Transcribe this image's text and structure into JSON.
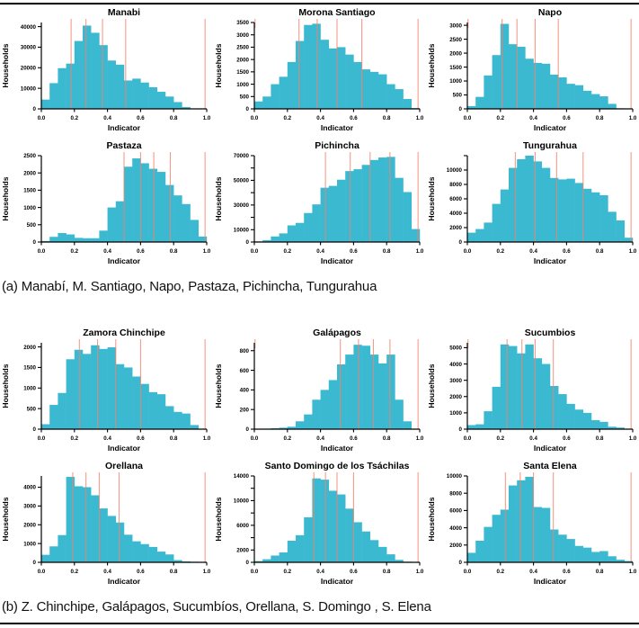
{
  "figure": {
    "bar_color": "#3bb9d1",
    "red_line_color": "#f2836f",
    "axis_color": "#000000",
    "rule_color": "#000000"
  },
  "captions": {
    "a": "(a) Manabí, M. Santiago, Napo, Pastaza, Pichincha, Tungurahua",
    "b": "(b) Z. Chinchipe, Galápagos, Sucumbíos, Orellana, S. Domingo , S. Elena"
  },
  "chart_data": [
    {
      "type": "histogram",
      "panel": "a",
      "slug": "manabi",
      "title": "Manabi",
      "xlabel": "Indicator",
      "ylabel": "Households",
      "bin_start": 0,
      "bin_width": 0.05,
      "xlim": [
        0,
        1
      ],
      "xticks": [
        0,
        0.2,
        0.4,
        0.6,
        0.8,
        1
      ],
      "values": [
        4500,
        12500,
        19800,
        22000,
        33000,
        40500,
        37000,
        31000,
        23500,
        21500,
        13800,
        14700,
        12800,
        10500,
        8300,
        6000,
        3300,
        900,
        0,
        0
      ],
      "ylim": [
        0,
        42000
      ],
      "yticks": [
        0,
        10000,
        20000,
        30000,
        40000
      ],
      "red_lines": [
        0.18,
        0.27,
        0.37,
        0.51,
        0.99
      ],
      "zero_top_tick": false
    },
    {
      "type": "histogram",
      "panel": "a",
      "slug": "morona-santiago",
      "title": "Morona Santiago",
      "xlabel": "Indicator",
      "ylabel": "Households",
      "bin_start": 0,
      "bin_width": 0.05,
      "xlim": [
        0,
        1
      ],
      "xticks": [
        0,
        0.2,
        0.4,
        0.6,
        0.8,
        1
      ],
      "values": [
        300,
        500,
        1000,
        1300,
        1900,
        2750,
        3400,
        3450,
        2800,
        2450,
        2500,
        2200,
        1900,
        1600,
        1500,
        1400,
        1000,
        800,
        400,
        30
      ],
      "ylim": [
        0,
        3500
      ],
      "yticks": [
        0,
        500,
        1000,
        1500,
        2000,
        2500,
        3000,
        3500
      ],
      "red_lines": [
        0.27,
        0.38,
        0.5,
        0.65,
        0.99
      ],
      "zero_top_tick": true
    },
    {
      "type": "histogram",
      "panel": "a",
      "slug": "napo",
      "title": "Napo",
      "xlabel": "Indicator",
      "ylabel": "Households",
      "bin_start": 0,
      "bin_width": 0.05,
      "xlim": [
        0,
        1
      ],
      "xticks": [
        0,
        0.2,
        0.4,
        0.6,
        0.8,
        1
      ],
      "values": [
        100,
        430,
        1200,
        1930,
        3050,
        2320,
        2230,
        1800,
        1650,
        1620,
        1230,
        1130,
        900,
        850,
        650,
        530,
        450,
        180,
        20,
        0
      ],
      "ylim": [
        0,
        3100
      ],
      "yticks": [
        0,
        500,
        1000,
        1500,
        2000,
        2500,
        3000
      ],
      "red_lines": [
        0.21,
        0.3,
        0.41,
        0.55,
        0.99
      ],
      "zero_top_tick": true
    },
    {
      "type": "histogram",
      "panel": "a",
      "slug": "pastaza",
      "title": "Pastaza",
      "xlabel": "Indicator",
      "ylabel": "Households",
      "bin_start": 0,
      "bin_width": 0.05,
      "xlim": [
        0,
        1
      ],
      "xticks": [
        0,
        0.2,
        0.4,
        0.6,
        0.8,
        1
      ],
      "values": [
        30,
        150,
        260,
        220,
        120,
        110,
        110,
        330,
        1000,
        1180,
        2180,
        2420,
        2280,
        2120,
        2030,
        1650,
        1350,
        1100,
        640,
        160
      ],
      "ylim": [
        0,
        2500
      ],
      "yticks": [
        0,
        500,
        1000,
        1500,
        2000,
        2500
      ],
      "red_lines": [
        0.5,
        0.6,
        0.68,
        0.78,
        0.99
      ],
      "zero_top_tick": false
    },
    {
      "type": "histogram",
      "panel": "a",
      "slug": "pichincha",
      "title": "Pichincha",
      "xlabel": "Indicator",
      "ylabel": "Households",
      "bin_start": 0,
      "bin_width": 0.05,
      "xlim": [
        0,
        1
      ],
      "xticks": [
        0,
        0.2,
        0.4,
        0.6,
        0.8,
        1
      ],
      "values": [
        500,
        1500,
        4500,
        7000,
        13500,
        15500,
        23500,
        30500,
        44000,
        45500,
        50500,
        57500,
        59000,
        62500,
        66500,
        68500,
        69000,
        52000,
        40500,
        10500
      ],
      "ylim": [
        0,
        70000
      ],
      "yticks": [
        0,
        10000,
        20000,
        30000,
        40000,
        50000,
        60000,
        70000
      ],
      "ytick_labels": [
        "0",
        "10000",
        "",
        "30000",
        "",
        "50000",
        "",
        "70000"
      ],
      "red_lines": [
        0.43,
        0.58,
        0.7,
        0.82,
        0.99
      ],
      "zero_top_tick": false
    },
    {
      "type": "histogram",
      "panel": "a",
      "slug": "tungurahua",
      "title": "Tungurahua",
      "xlabel": "Indicator",
      "ylabel": "Households",
      "bin_start": 0,
      "bin_width": 0.05,
      "xlim": [
        0,
        1
      ],
      "xticks": [
        0,
        0.2,
        0.4,
        0.6,
        0.8,
        1
      ],
      "values": [
        1300,
        1800,
        2700,
        5300,
        7300,
        10300,
        11500,
        12000,
        11200,
        10300,
        8900,
        8700,
        8800,
        8200,
        7400,
        6900,
        6500,
        4200,
        3000,
        600
      ],
      "ylim": [
        0,
        12000
      ],
      "yticks": [
        0,
        2000,
        4000,
        6000,
        8000,
        10000,
        12000
      ],
      "ytick_labels": [
        "0",
        "2000",
        "4000",
        "6000",
        "8000",
        "10000",
        ""
      ],
      "red_lines": [
        0.29,
        0.41,
        0.54,
        0.7,
        0.99
      ],
      "zero_top_tick": false
    },
    {
      "type": "histogram",
      "panel": "b",
      "slug": "zamora-chinchipe",
      "title": "Zamora Chinchipe",
      "xlabel": "Indicator",
      "ylabel": "Households",
      "bin_start": 0,
      "bin_width": 0.05,
      "xlim": [
        0,
        1
      ],
      "xticks": [
        0,
        0.2,
        0.4,
        0.6,
        0.8,
        1
      ],
      "values": [
        120,
        590,
        880,
        1700,
        1930,
        1830,
        2040,
        1950,
        1990,
        1580,
        1500,
        1280,
        1100,
        900,
        850,
        560,
        420,
        380,
        100,
        0
      ],
      "ylim": [
        0,
        2100
      ],
      "yticks": [
        0,
        500,
        1000,
        1500,
        2000
      ],
      "red_lines": [
        0.23,
        0.34,
        0.45,
        0.6,
        0.99
      ],
      "zero_top_tick": false
    },
    {
      "type": "histogram",
      "panel": "b",
      "slug": "galapagos",
      "title": "Galápagos",
      "xlabel": "Indicator",
      "ylabel": "Households",
      "bin_start": 0,
      "bin_width": 0.05,
      "xlim": [
        0,
        1
      ],
      "xticks": [
        0,
        0.2,
        0.4,
        0.6,
        0.8,
        1
      ],
      "values": [
        0,
        5,
        10,
        15,
        25,
        80,
        150,
        300,
        400,
        500,
        660,
        760,
        860,
        850,
        760,
        670,
        760,
        300,
        80,
        0
      ],
      "ylim": [
        0,
        880
      ],
      "yticks": [
        0,
        200,
        400,
        600,
        800
      ],
      "red_lines": [
        0.52,
        0.63,
        0.72,
        0.82,
        0.99
      ],
      "zero_top_tick": true
    },
    {
      "type": "histogram",
      "panel": "b",
      "slug": "sucumbios",
      "title": "Sucumbios",
      "xlabel": "Indicator",
      "ylabel": "Households",
      "bin_start": 0,
      "bin_width": 0.05,
      "xlim": [
        0,
        1
      ],
      "xticks": [
        0,
        0.2,
        0.4,
        0.6,
        0.8,
        1
      ],
      "values": [
        250,
        300,
        1100,
        2600,
        5200,
        5100,
        4650,
        5200,
        4350,
        4000,
        2650,
        2150,
        1550,
        1200,
        1000,
        550,
        450,
        150,
        100,
        0
      ],
      "ylim": [
        0,
        5300
      ],
      "yticks": [
        0,
        1000,
        2000,
        3000,
        4000,
        5000
      ],
      "red_lines": [
        0.24,
        0.33,
        0.41,
        0.52,
        0.99
      ],
      "zero_top_tick": true
    },
    {
      "type": "histogram",
      "panel": "b",
      "slug": "orellana",
      "title": "Orellana",
      "xlabel": "Indicator",
      "ylabel": "Households",
      "bin_start": 0,
      "bin_width": 0.05,
      "xlim": [
        0,
        1
      ],
      "xticks": [
        0,
        0.2,
        0.4,
        0.6,
        0.8,
        1
      ],
      "values": [
        400,
        850,
        1450,
        4550,
        4050,
        4000,
        3570,
        2870,
        2470,
        2120,
        1470,
        1120,
        970,
        820,
        570,
        420,
        120,
        50,
        30,
        0
      ],
      "ylim": [
        0,
        4600
      ],
      "yticks": [
        0,
        1000,
        2000,
        3000,
        4000
      ],
      "red_lines": [
        0.19,
        0.27,
        0.35,
        0.47,
        0.99
      ],
      "zero_top_tick": false
    },
    {
      "type": "histogram",
      "panel": "b",
      "slug": "santo-domingo",
      "title": "Santo Domingo de los Tsáchilas",
      "xlabel": "Indicator",
      "ylabel": "Households",
      "bin_start": 0,
      "bin_width": 0.05,
      "xlim": [
        0,
        1
      ],
      "xticks": [
        0,
        0.2,
        0.4,
        0.6,
        0.8,
        1
      ],
      "values": [
        200,
        500,
        1100,
        1600,
        3500,
        4400,
        7300,
        13600,
        13400,
        11600,
        11000,
        8700,
        6500,
        5000,
        3600,
        2500,
        1300,
        400,
        100,
        0
      ],
      "ylim": [
        0,
        14000
      ],
      "yticks": [
        0,
        2000,
        4000,
        6000,
        8000,
        10000,
        12000,
        14000
      ],
      "ytick_labels": [
        "0",
        "2000",
        "",
        "6000",
        "",
        "10000",
        "",
        "14000"
      ],
      "red_lines": [
        0.36,
        0.43,
        0.5,
        0.6,
        0.99
      ],
      "zero_top_tick": false
    },
    {
      "type": "histogram",
      "panel": "b",
      "slug": "santa-elena",
      "title": "Santa Elena",
      "xlabel": "Indicator",
      "ylabel": "Households",
      "bin_start": 0,
      "bin_width": 0.05,
      "xlim": [
        0,
        1
      ],
      "xticks": [
        0,
        0.2,
        0.4,
        0.6,
        0.8,
        1
      ],
      "values": [
        1100,
        2500,
        4100,
        5500,
        6100,
        8900,
        9500,
        9900,
        6400,
        6300,
        3800,
        3200,
        2700,
        1900,
        1700,
        1200,
        1300,
        700,
        300,
        150
      ],
      "ylim": [
        0,
        10000
      ],
      "yticks": [
        0,
        2000,
        4000,
        6000,
        8000,
        10000
      ],
      "red_lines": [
        0.23,
        0.32,
        0.4,
        0.52,
        0.99
      ],
      "zero_top_tick": false
    }
  ]
}
